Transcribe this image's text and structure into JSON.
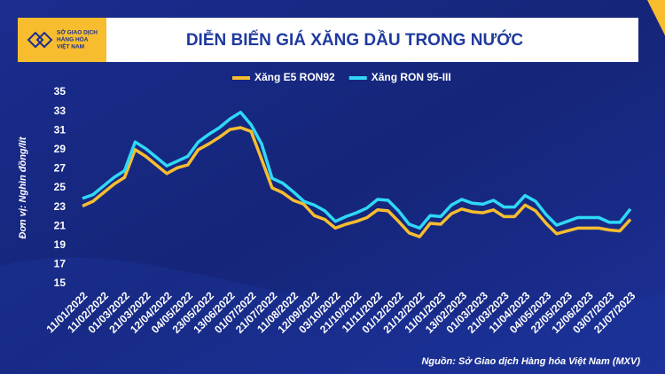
{
  "header": {
    "logo": [
      "SỞ GIAO DỊCH",
      "HÀNG HÓA",
      "VIỆT NAM"
    ]
  },
  "chart_data": {
    "type": "line",
    "title": "DIỄN BIẾN GIÁ XĂNG DẦU TRONG NƯỚC",
    "y_label": "Đơn vị: Nghìn đồng/lít",
    "source": "Nguồn: Sở Giao dịch Hàng hóa Việt Nam (MXV)",
    "categories": [
      "11/01/2022",
      null,
      "11/02/2022",
      null,
      "01/03/2022",
      null,
      "21/03/2022",
      null,
      "12/04/2022",
      null,
      "04/05/2022",
      null,
      "23/05/2022",
      null,
      "13/06/2022",
      null,
      "01/07/2022",
      null,
      "21/07/2022",
      null,
      "11/08/2022",
      null,
      "12/09/2022",
      null,
      "03/10/2022",
      null,
      "21/10/2022",
      null,
      "11/11/2022",
      null,
      "01/12/2022",
      null,
      "21/12/2022",
      null,
      "11/01/2023",
      null,
      "13/02/2023",
      null,
      "01/03/2023",
      null,
      "21/03/2023",
      null,
      "11/04/2023",
      null,
      "04/05/2023",
      null,
      "22/05/2023",
      null,
      "12/06/2023",
      null,
      "03/07/2023",
      null,
      "21/07/2023"
    ],
    "series": [
      {
        "name": "Xăng E5 RON92",
        "color": "#f7bd2f",
        "values": [
          23.1,
          23.6,
          24.5,
          25.4,
          26.1,
          29.0,
          28.3,
          27.4,
          26.5,
          27.1,
          27.4,
          29.0,
          29.6,
          30.3,
          31.1,
          31.3,
          30.9,
          28.0,
          25.0,
          24.5,
          23.7,
          23.3,
          22.1,
          21.7,
          20.8,
          21.2,
          21.5,
          21.9,
          22.7,
          22.6,
          21.5,
          20.3,
          19.9,
          21.3,
          21.2,
          22.3,
          22.8,
          22.5,
          22.4,
          22.7,
          22.0,
          22.0,
          23.2,
          22.6,
          21.3,
          20.2,
          20.5,
          20.8,
          20.8,
          20.8,
          20.6,
          20.5,
          21.7
        ]
      },
      {
        "name": "Xăng RON 95-III",
        "color": "#2fd8f7",
        "values": [
          23.9,
          24.3,
          25.2,
          26.1,
          26.8,
          29.8,
          29.1,
          28.2,
          27.3,
          27.8,
          28.3,
          29.8,
          30.6,
          31.3,
          32.2,
          32.9,
          31.6,
          29.6,
          26.0,
          25.5,
          24.6,
          23.6,
          23.2,
          22.6,
          21.5,
          22.0,
          22.4,
          22.9,
          23.8,
          23.7,
          22.6,
          21.2,
          20.8,
          22.1,
          22.0,
          23.2,
          23.8,
          23.4,
          23.3,
          23.7,
          23.0,
          23.0,
          24.2,
          23.6,
          22.2,
          21.1,
          21.5,
          21.9,
          21.9,
          21.9,
          21.4,
          21.4,
          22.8
        ]
      }
    ],
    "ylim": [
      15,
      35
    ],
    "yticks": [
      15,
      17,
      19,
      21,
      23,
      25,
      27,
      29,
      31,
      33,
      35
    ],
    "grid": false,
    "legend": "top"
  }
}
